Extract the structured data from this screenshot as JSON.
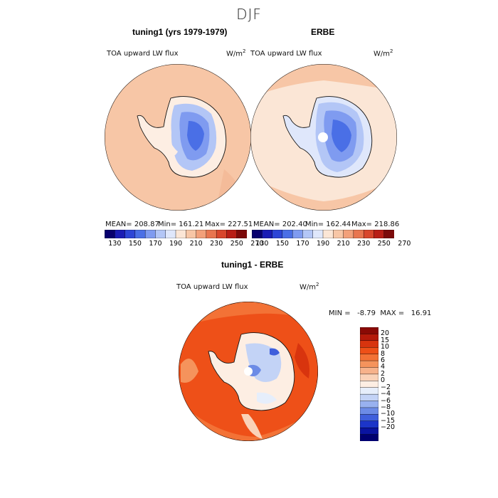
{
  "figure_title": "DJF",
  "panels": [
    {
      "title": "tuning1 (yrs 1979-1979)",
      "variable": "TOA upward LW flux",
      "units": "W/m",
      "units_sup": "2",
      "mean_label": "MEAN= 208.87",
      "min_label": "Min= 161.21",
      "max_label": "Max= 227.51"
    },
    {
      "title": "ERBE",
      "variable": "TOA upward LW flux",
      "units": "W/m",
      "units_sup": "2",
      "mean_label": "MEAN= 202.40",
      "min_label": "Min= 162.44",
      "max_label": "Max= 218.86"
    },
    {
      "title": "tuning1 - ERBE",
      "variable": "TOA upward LW flux",
      "units": "W/m",
      "units_sup": "2",
      "minmax_label": "MIN =   -8.79  MAX =   16.91"
    }
  ],
  "colorbar_abs": {
    "tick_labels": [
      "130",
      "150",
      "170",
      "190",
      "210",
      "230",
      "250",
      "270"
    ],
    "colors": [
      "#08006e",
      "#1a1cb4",
      "#2d45d6",
      "#4a6fe6",
      "#7f9bf0",
      "#b3c6f6",
      "#dfe7fb",
      "#fbe6d6",
      "#f7c6a6",
      "#f2a07a",
      "#e8754f",
      "#d8462c",
      "#b81e16",
      "#7c0a0a"
    ]
  },
  "colorbar_diff": {
    "tick_labels": [
      "20",
      "15",
      "10",
      "8",
      "6",
      "4",
      "2",
      "0",
      "−2",
      "−4",
      "−6",
      "−8",
      "−10",
      "−15",
      "−20"
    ],
    "colors": [
      "#8a0a05",
      "#b51a0a",
      "#d8340e",
      "#ee5018",
      "#f37236",
      "#f5935c",
      "#f7b28b",
      "#fad2b8",
      "#fdeee3",
      "#e6eefb",
      "#c3d3f6",
      "#98b1ef",
      "#6c8be6",
      "#3f5fdc",
      "#1c35c8",
      "#0a14a0",
      "#000070"
    ]
  },
  "colors": {
    "land_outline": "#111111",
    "background": "#ffffff"
  }
}
